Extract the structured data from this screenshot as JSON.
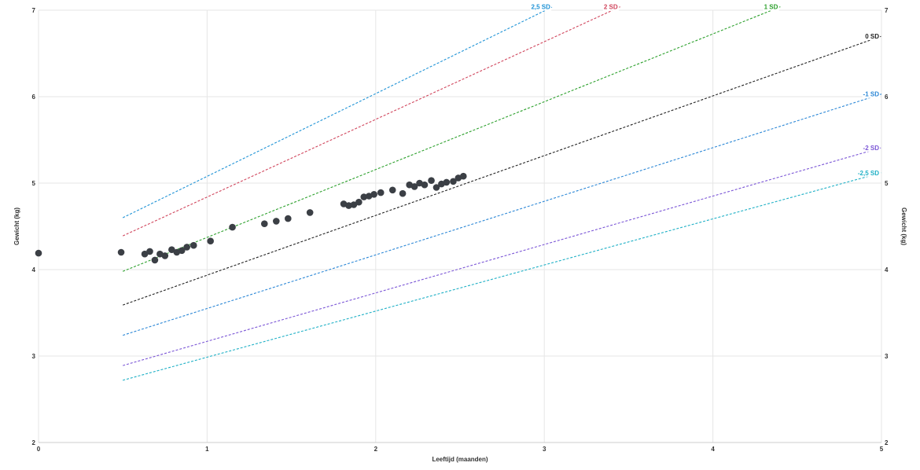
{
  "chart_data": {
    "type": "scatter",
    "xlabel": "Leeftijd (maanden)",
    "ylabel": "Gewicht (kg)",
    "ylabel_right": "Gewicht (kg)",
    "xlim": [
      0,
      5
    ],
    "ylim": [
      2,
      7
    ],
    "x_ticks": [
      "0",
      "1",
      "2",
      "3",
      "4",
      "5"
    ],
    "y_ticks": [
      "2",
      "3",
      "4",
      "5",
      "6",
      "7"
    ],
    "grid": true,
    "points": [
      {
        "x": 0.0,
        "y": 4.19
      },
      {
        "x": 0.49,
        "y": 4.2
      },
      {
        "x": 0.63,
        "y": 4.18
      },
      {
        "x": 0.66,
        "y": 4.21
      },
      {
        "x": 0.69,
        "y": 4.11
      },
      {
        "x": 0.72,
        "y": 4.18
      },
      {
        "x": 0.75,
        "y": 4.16
      },
      {
        "x": 0.79,
        "y": 4.23
      },
      {
        "x": 0.82,
        "y": 4.2
      },
      {
        "x": 0.85,
        "y": 4.22
      },
      {
        "x": 0.88,
        "y": 4.26
      },
      {
        "x": 0.92,
        "y": 4.28
      },
      {
        "x": 1.02,
        "y": 4.33
      },
      {
        "x": 1.15,
        "y": 4.49
      },
      {
        "x": 1.34,
        "y": 4.53
      },
      {
        "x": 1.41,
        "y": 4.56
      },
      {
        "x": 1.48,
        "y": 4.59
      },
      {
        "x": 1.61,
        "y": 4.66
      },
      {
        "x": 1.81,
        "y": 4.76
      },
      {
        "x": 1.84,
        "y": 4.74
      },
      {
        "x": 1.87,
        "y": 4.75
      },
      {
        "x": 1.9,
        "y": 4.78
      },
      {
        "x": 1.93,
        "y": 4.84
      },
      {
        "x": 1.96,
        "y": 4.85
      },
      {
        "x": 1.99,
        "y": 4.87
      },
      {
        "x": 2.03,
        "y": 4.89
      },
      {
        "x": 2.1,
        "y": 4.92
      },
      {
        "x": 2.16,
        "y": 4.88
      },
      {
        "x": 2.2,
        "y": 4.98
      },
      {
        "x": 2.23,
        "y": 4.96
      },
      {
        "x": 2.26,
        "y": 5.0
      },
      {
        "x": 2.29,
        "y": 4.98
      },
      {
        "x": 2.33,
        "y": 5.03
      },
      {
        "x": 2.36,
        "y": 4.95
      },
      {
        "x": 2.39,
        "y": 4.99
      },
      {
        "x": 2.42,
        "y": 5.01
      },
      {
        "x": 2.46,
        "y": 5.02
      },
      {
        "x": 2.49,
        "y": 5.06
      },
      {
        "x": 2.52,
        "y": 5.08
      }
    ],
    "reference_lines": [
      {
        "name": "2,5 SD",
        "color": "#1f93d6",
        "x": [
          0.5,
          3.05
        ],
        "y": [
          4.6,
          7.04
        ]
      },
      {
        "name": "2 SD",
        "color": "#d0455c",
        "x": [
          0.5,
          3.45
        ],
        "y": [
          4.39,
          7.04
        ]
      },
      {
        "name": "1 SD",
        "color": "#2ca02c",
        "x": [
          0.5,
          4.4
        ],
        "y": [
          3.98,
          7.04
        ]
      },
      {
        "name": "0 SD",
        "color": "#222222",
        "x": [
          0.5,
          5.0
        ],
        "y": [
          3.59,
          6.7
        ]
      },
      {
        "name": "-1 SD",
        "color": "#2b87d6",
        "x": [
          0.5,
          5.0
        ],
        "y": [
          3.24,
          6.03
        ]
      },
      {
        "name": "-2 SD",
        "color": "#7b56d6",
        "x": [
          0.5,
          5.0
        ],
        "y": [
          2.89,
          5.41
        ]
      },
      {
        "name": "-2,5 SD",
        "color": "#1fb0c6",
        "x": [
          0.5,
          5.0
        ],
        "y": [
          2.72,
          5.12
        ]
      }
    ],
    "point_color": "#3b3f45"
  }
}
